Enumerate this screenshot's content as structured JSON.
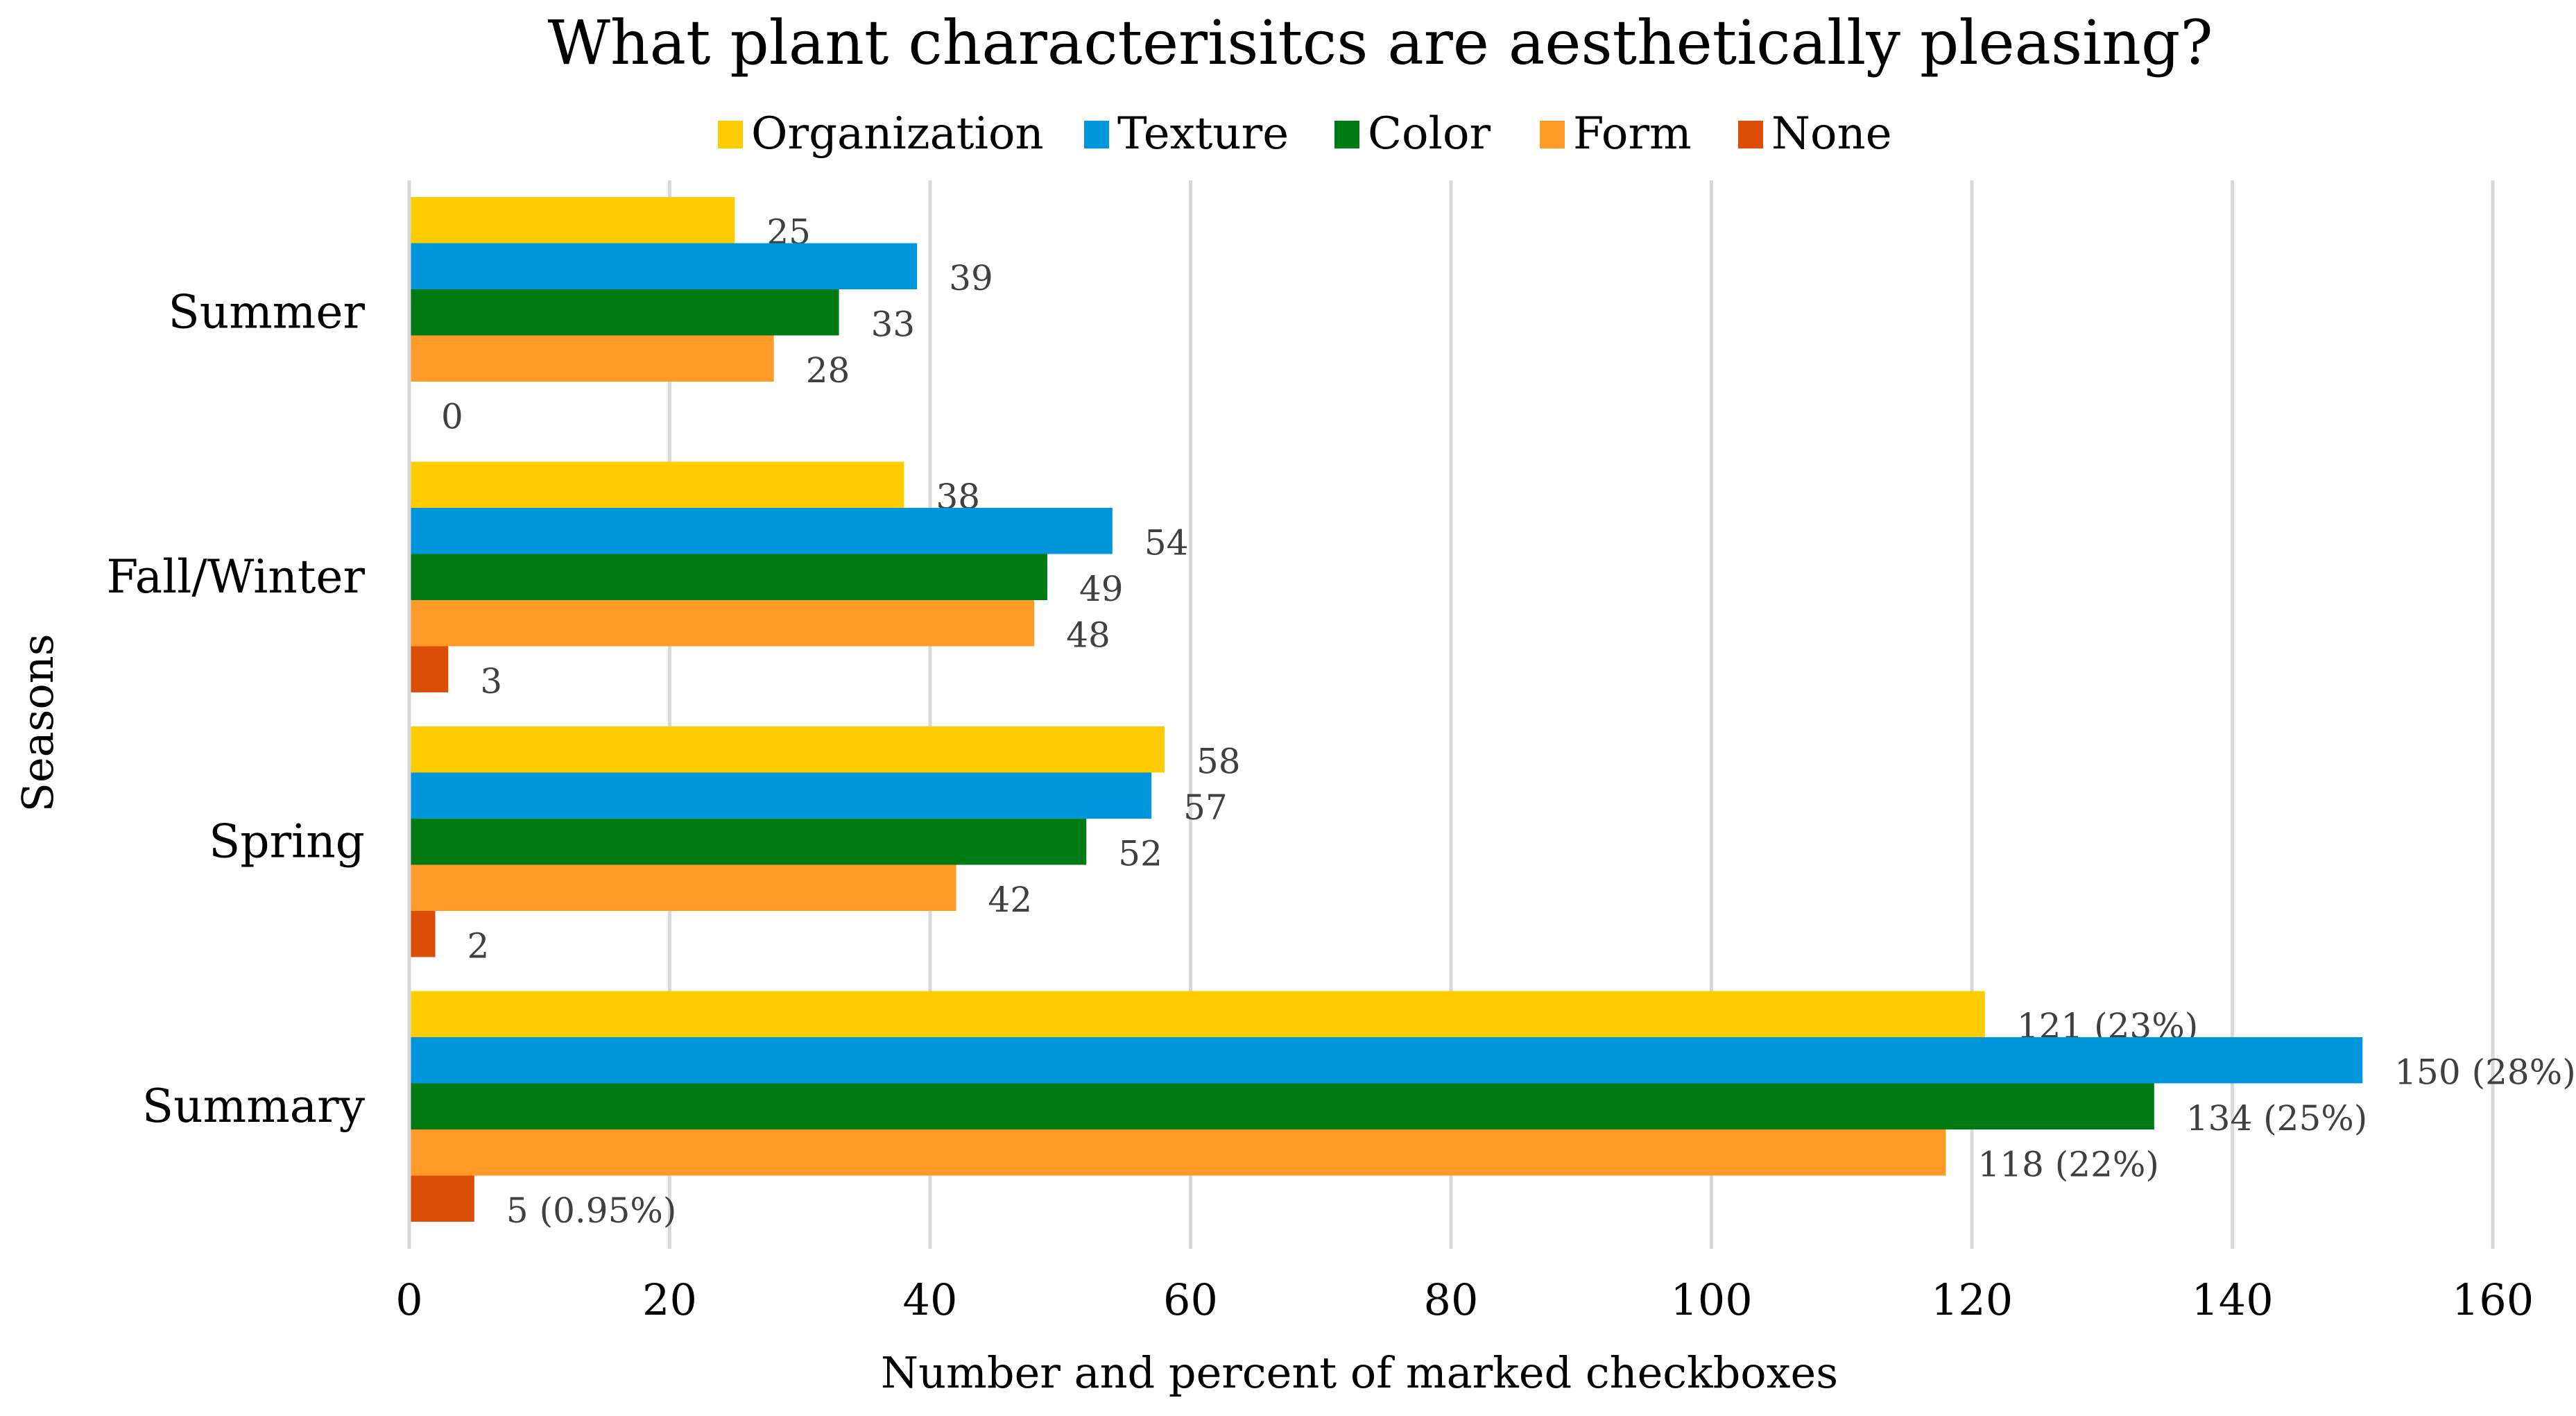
{
  "chart_data": {
    "type": "bar",
    "orientation": "horizontal",
    "title": "What plant characterisitcs are aesthetically pleasing?",
    "xlabel": "Number and percent of marked checkboxes",
    "ylabel": "Seasons",
    "xlim": [
      0,
      160
    ],
    "xticks": [
      "0",
      "20",
      "40",
      "60",
      "80",
      "100",
      "120",
      "140",
      "160"
    ],
    "grid": true,
    "legend_position": "top",
    "categories": [
      "Summer",
      "Fall/Winter",
      "Spring",
      "Summary"
    ],
    "series": [
      {
        "name": "Organization",
        "color": "#FFCC00",
        "values": [
          25,
          38,
          58,
          121
        ],
        "labels": [
          "25",
          "38",
          "58",
          "121 (23%)"
        ]
      },
      {
        "name": "Texture",
        "color": "#0096DC",
        "values": [
          39,
          54,
          57,
          150
        ],
        "labels": [
          "39",
          "54",
          "57",
          "150 (28%)"
        ]
      },
      {
        "name": "Color",
        "color": "#007A12",
        "values": [
          33,
          49,
          52,
          134
        ],
        "labels": [
          "33",
          "49",
          "52",
          "134 (25%)"
        ]
      },
      {
        "name": "Form",
        "color": "#FF9A28",
        "values": [
          28,
          48,
          42,
          118
        ],
        "labels": [
          "28",
          "48",
          "42",
          "118 (22%)"
        ]
      },
      {
        "name": "None",
        "color": "#DB4E06",
        "values": [
          0,
          3,
          2,
          5
        ],
        "labels": [
          "0",
          "3",
          "2",
          "5 (0.95%)"
        ]
      }
    ]
  }
}
